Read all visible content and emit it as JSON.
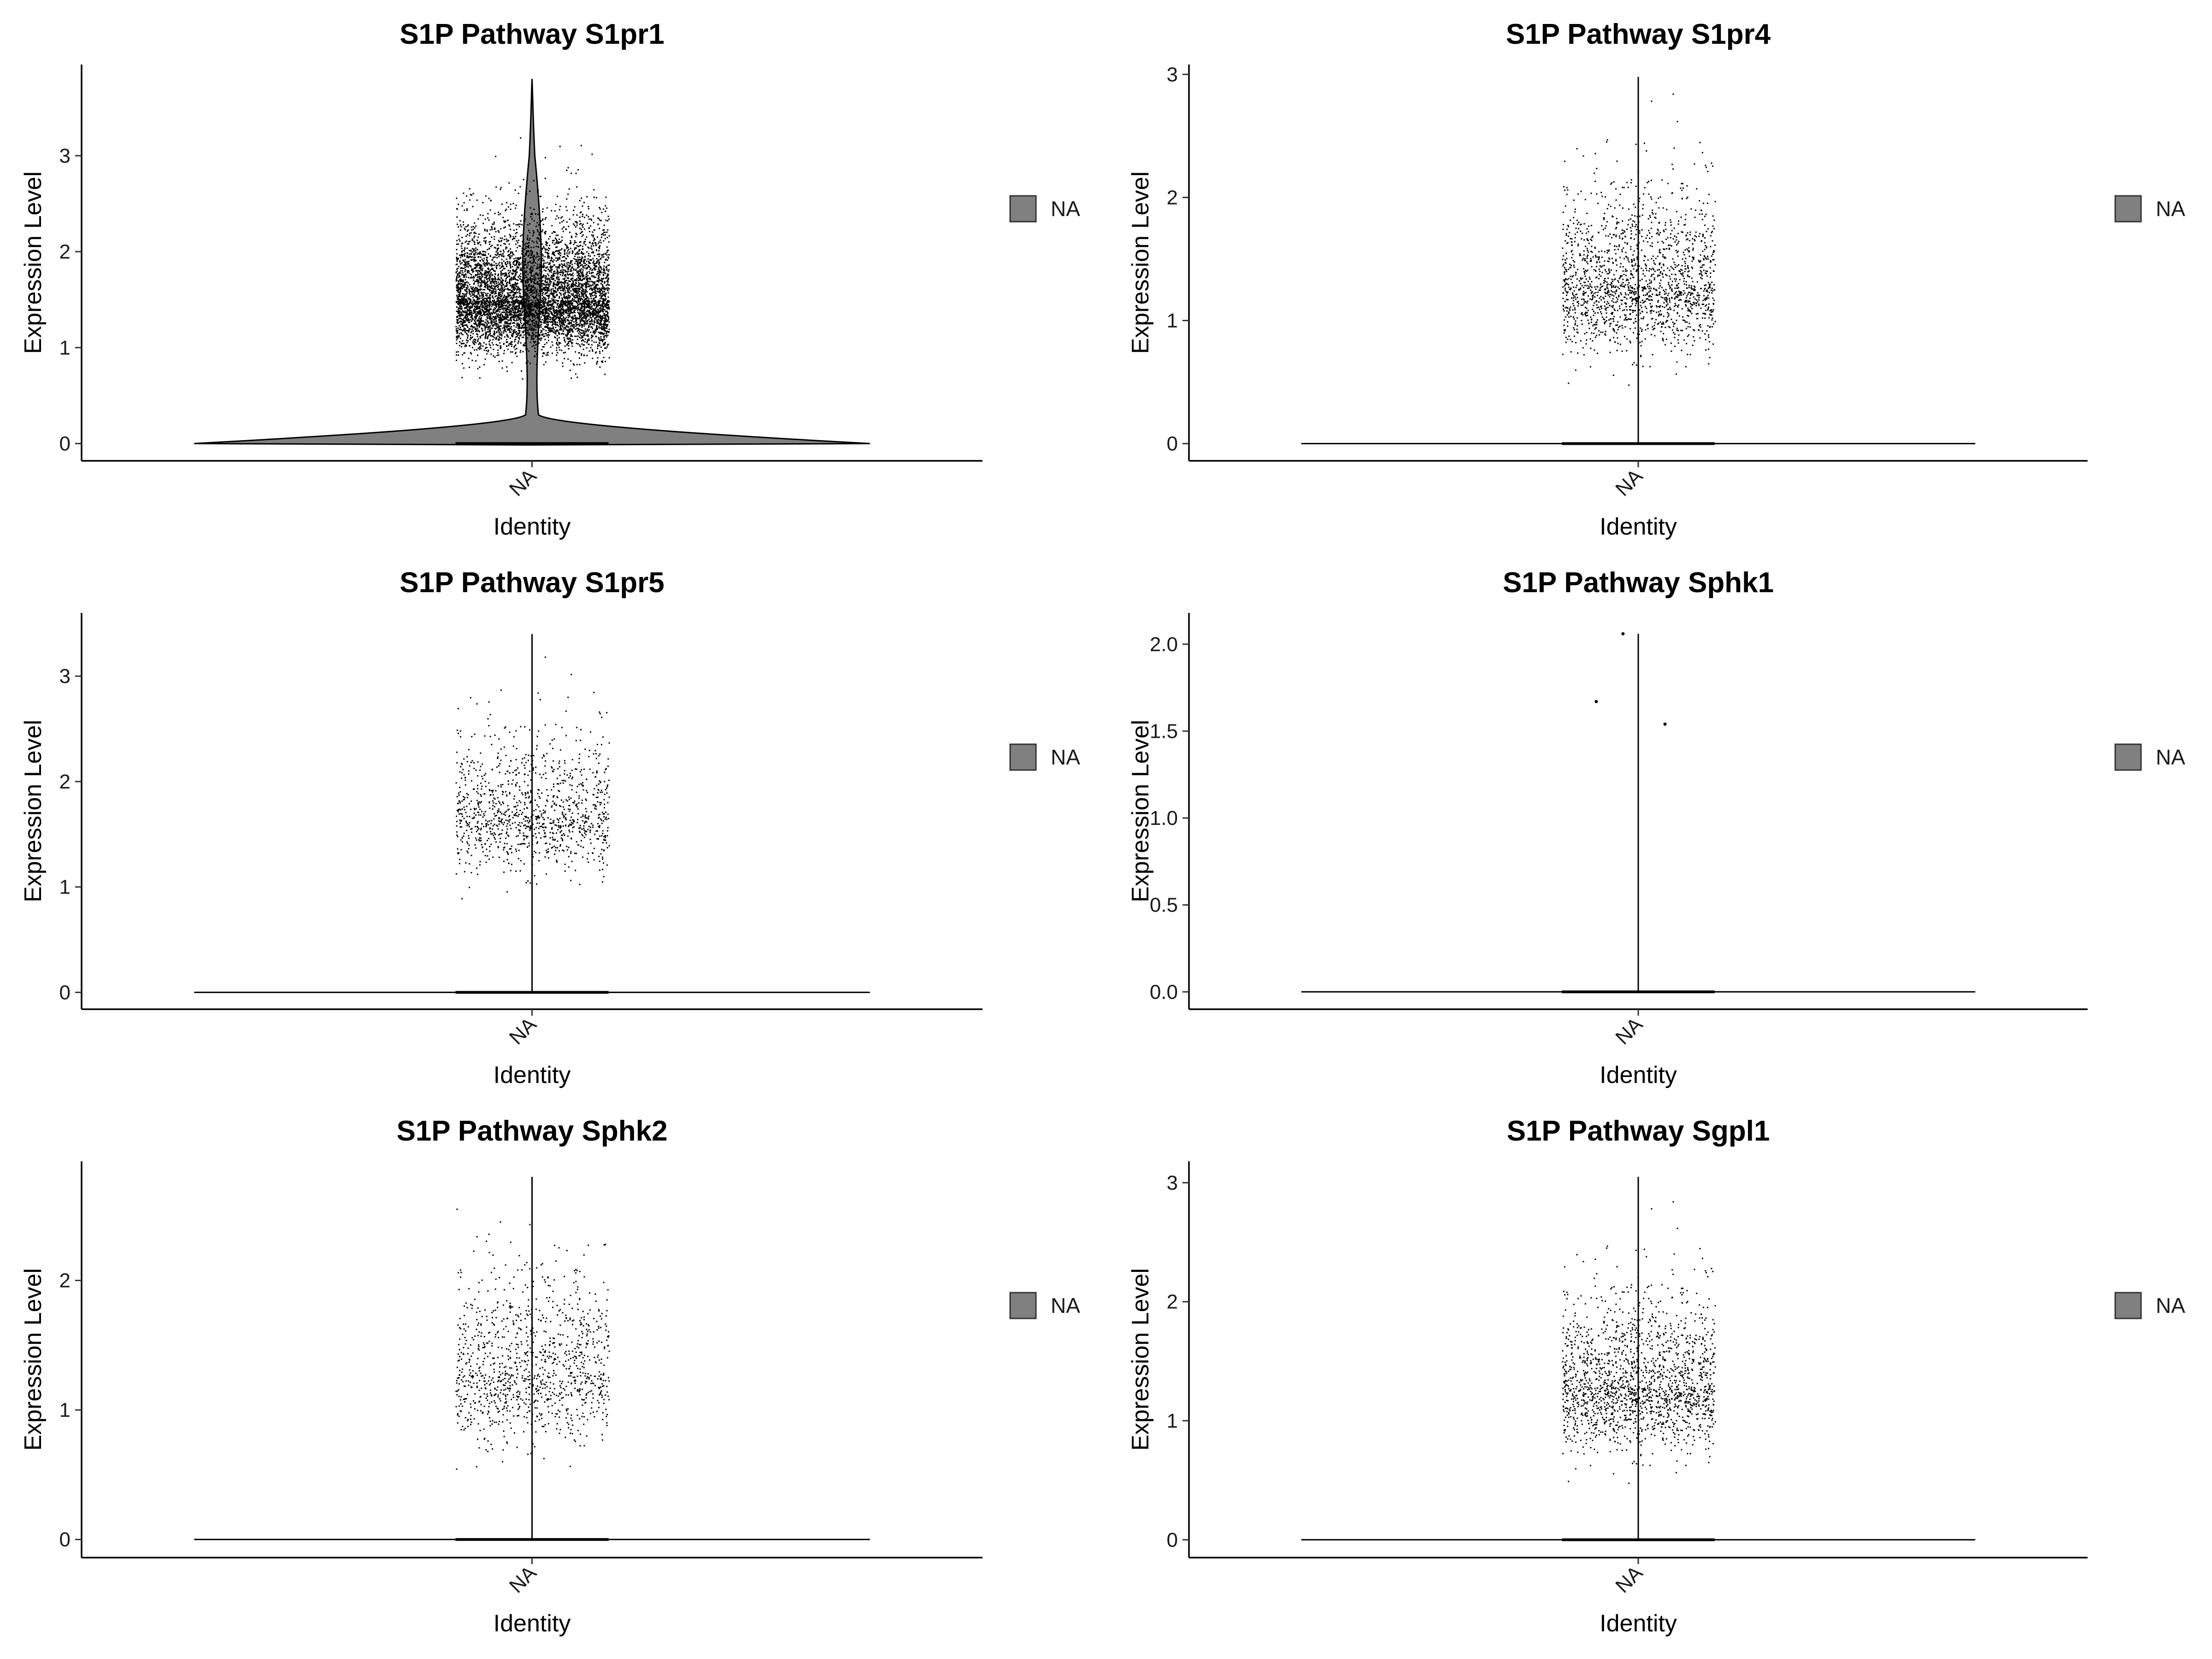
{
  "chart_data": [
    {
      "type": "violin",
      "title": "S1P Pathway S1pr1",
      "xlabel": "Identity",
      "ylabel": "Expression Level",
      "categories": [
        "NA"
      ],
      "ylim": [
        -0.18,
        3.95
      ],
      "yticks": [
        0,
        1,
        2,
        3
      ],
      "legend": {
        "label": "NA",
        "position": "right"
      },
      "fill": "#808080",
      "expression_range": [
        0,
        3.8
      ],
      "bulk_range": [
        0.6,
        3.2
      ],
      "bulk_center": 1.5,
      "zeros_present": true,
      "point_density": "very high",
      "violin_shape": "wide at 0, narrow neck near 0.3, bulge 1-2.5, tail to 3.8"
    },
    {
      "type": "violin",
      "title": "S1P Pathway S1pr4",
      "xlabel": "Identity",
      "ylabel": "Expression Level",
      "categories": [
        "NA"
      ],
      "ylim": [
        -0.14,
        3.08
      ],
      "yticks": [
        0,
        1,
        2,
        3
      ],
      "legend": {
        "label": "NA",
        "position": "right"
      },
      "fill": "#808080",
      "expression_range": [
        0,
        2.98
      ],
      "bulk_range": [
        0.45,
        2.85
      ],
      "bulk_center": 1.3,
      "zeros_present": true,
      "point_density": "high"
    },
    {
      "type": "violin",
      "title": "S1P Pathway S1pr5",
      "xlabel": "Identity",
      "ylabel": "Expression Level",
      "categories": [
        "NA"
      ],
      "ylim": [
        -0.16,
        3.6
      ],
      "yticks": [
        0,
        1,
        2,
        3
      ],
      "legend": {
        "label": "NA",
        "position": "right"
      },
      "fill": "#808080",
      "expression_range": [
        0,
        3.4
      ],
      "bulk_range": [
        0.85,
        3.2
      ],
      "bulk_center": 1.7,
      "zeros_present": true,
      "point_density": "medium"
    },
    {
      "type": "violin",
      "title": "S1P Pathway Sphk1",
      "xlabel": "Identity",
      "ylabel": "Expression Level",
      "categories": [
        "NA"
      ],
      "ylim": [
        -0.1,
        2.18
      ],
      "yticks": [
        0.0,
        0.5,
        1.0,
        1.5,
        2.0
      ],
      "ytick_labels": [
        "0.0",
        "0.5",
        "1.0",
        "1.5",
        "2.0"
      ],
      "legend": {
        "label": "NA",
        "position": "right"
      },
      "fill": "#808080",
      "expression_range": [
        0,
        2.06
      ],
      "outlier_points": [
        1.67,
        1.54,
        2.06
      ],
      "zeros_present": true,
      "point_density": "sparse"
    },
    {
      "type": "violin",
      "title": "S1P Pathway Sphk2",
      "xlabel": "Identity",
      "ylabel": "Expression Level",
      "categories": [
        "NA"
      ],
      "ylim": [
        -0.14,
        2.92
      ],
      "yticks": [
        0,
        1,
        2
      ],
      "legend": {
        "label": "NA",
        "position": "right"
      },
      "fill": "#808080",
      "expression_range": [
        0,
        2.8
      ],
      "bulk_range": [
        0.5,
        2.75
      ],
      "bulk_center": 1.3,
      "zeros_present": true,
      "point_density": "medium"
    },
    {
      "type": "violin",
      "title": "S1P Pathway Sgpl1",
      "xlabel": "Identity",
      "ylabel": "Expression Level",
      "categories": [
        "NA"
      ],
      "ylim": [
        -0.15,
        3.18
      ],
      "yticks": [
        0,
        1,
        2,
        3
      ],
      "legend": {
        "label": "NA",
        "position": "right"
      },
      "fill": "#808080",
      "expression_range": [
        0,
        3.05
      ],
      "bulk_range": [
        0.45,
        2.85
      ],
      "bulk_center": 1.3,
      "zeros_present": true,
      "point_density": "high"
    }
  ]
}
